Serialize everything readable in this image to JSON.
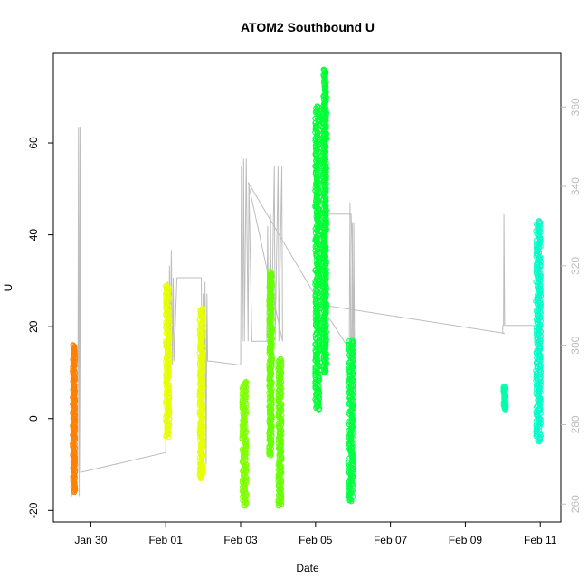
{
  "chart_data": {
    "type": "scatter",
    "title": "ATOM2 Southbound U",
    "xlabel": "Date",
    "ylabel": "U",
    "x_ticks": [
      "Jan 30",
      "Feb 01",
      "Feb 03",
      "Feb 05",
      "Feb 07",
      "Feb 09",
      "Feb 11"
    ],
    "x_tick_days": [
      30,
      32,
      34,
      36,
      38,
      40,
      42
    ],
    "xlim_days": [
      29.0,
      42.55
    ],
    "ylim": [
      -22.5,
      79.5
    ],
    "y_ticks": [
      -20,
      0,
      20,
      40,
      60
    ],
    "y_right_ticks": [
      260,
      280,
      300,
      320,
      340,
      360
    ],
    "y_right_lim": [
      255.5,
      373.5
    ],
    "grid": false,
    "marker": "open-circle",
    "clusters": [
      {
        "day": 29.55,
        "width": 0.07,
        "ymin": -16,
        "ymax": 16,
        "color": "#FF8000"
      },
      {
        "day": 32.05,
        "width": 0.1,
        "ymin": -4,
        "ymax": 29,
        "color": "#E6FF00"
      },
      {
        "day": 32.95,
        "width": 0.09,
        "ymin": -13,
        "ymax": 24,
        "color": "#E6FF00"
      },
      {
        "day": 34.1,
        "width": 0.12,
        "ymin": -19,
        "ymax": 8,
        "color": "#80FF00"
      },
      {
        "day": 34.8,
        "width": 0.08,
        "ymin": -8,
        "ymax": 32,
        "color": "#66FF00"
      },
      {
        "day": 35.05,
        "width": 0.09,
        "ymin": -19,
        "ymax": 13,
        "color": "#66FF00"
      },
      {
        "day": 36.05,
        "width": 0.12,
        "ymin": 2,
        "ymax": 68,
        "color": "#00FF33"
      },
      {
        "day": 36.25,
        "width": 0.08,
        "ymin": 10,
        "ymax": 76,
        "color": "#00FF33"
      },
      {
        "day": 36.95,
        "width": 0.12,
        "ymin": -18,
        "ymax": 17,
        "color": "#00FF40"
      },
      {
        "day": 41.05,
        "width": 0.07,
        "ymin": 2,
        "ymax": 7,
        "color": "#00FFAA"
      },
      {
        "day": 41.95,
        "width": 0.13,
        "ymin": -5,
        "ymax": 43,
        "color": "#00FFC8"
      }
    ],
    "secondary_line": {
      "color": "#bdbdbd",
      "axis": "right",
      "points": [
        [
          29.5,
          262
        ],
        [
          29.52,
          270
        ],
        [
          29.6,
          270
        ],
        [
          29.65,
          268
        ],
        [
          29.67,
          355
        ],
        [
          29.69,
          262
        ],
        [
          29.71,
          355
        ],
        [
          29.73,
          268
        ],
        [
          32.0,
          273
        ],
        [
          32.05,
          316
        ],
        [
          32.08,
          295
        ],
        [
          32.1,
          320
        ],
        [
          32.12,
          297
        ],
        [
          32.15,
          324
        ],
        [
          32.18,
          295
        ],
        [
          32.2,
          317
        ],
        [
          32.22,
          296
        ],
        [
          32.3,
          317
        ],
        [
          32.95,
          317
        ],
        [
          32.98,
          270
        ],
        [
          33.0,
          313
        ],
        [
          33.02,
          273
        ],
        [
          33.05,
          316
        ],
        [
          33.08,
          270
        ],
        [
          33.1,
          313
        ],
        [
          33.12,
          296
        ],
        [
          33.2,
          296
        ],
        [
          34.0,
          295
        ],
        [
          34.02,
          345
        ],
        [
          34.05,
          301
        ],
        [
          34.08,
          347
        ],
        [
          34.1,
          301
        ],
        [
          34.15,
          347
        ],
        [
          34.2,
          301
        ],
        [
          34.22,
          341
        ],
        [
          34.3,
          301
        ],
        [
          34.7,
          301
        ],
        [
          34.72,
          330
        ],
        [
          34.75,
          301
        ],
        [
          34.8,
          333
        ],
        [
          34.82,
          301
        ],
        [
          34.9,
          345
        ],
        [
          34.92,
          301
        ],
        [
          35.0,
          345
        ],
        [
          35.02,
          301
        ],
        [
          35.1,
          345
        ],
        [
          35.12,
          301
        ],
        [
          34.2,
          341
        ],
        [
          36.15,
          310
        ],
        [
          36.9,
          299
        ],
        [
          36.92,
          336
        ],
        [
          36.95,
          279
        ],
        [
          36.98,
          331
        ],
        [
          37.0,
          279
        ],
        [
          37.02,
          331
        ],
        [
          37.05,
          285
        ],
        [
          36.95,
          333
        ],
        [
          36.25,
          333
        ],
        [
          36.27,
          310
        ],
        [
          41.05,
          303
        ],
        [
          41.0,
          303
        ],
        [
          41.0,
          305
        ],
        [
          41.02,
          305
        ],
        [
          41.03,
          333
        ],
        [
          41.05,
          305
        ],
        [
          41.95,
          305
        ],
        [
          42.0,
          331
        ],
        [
          42.02,
          283
        ],
        [
          42.05,
          305
        ]
      ]
    }
  }
}
